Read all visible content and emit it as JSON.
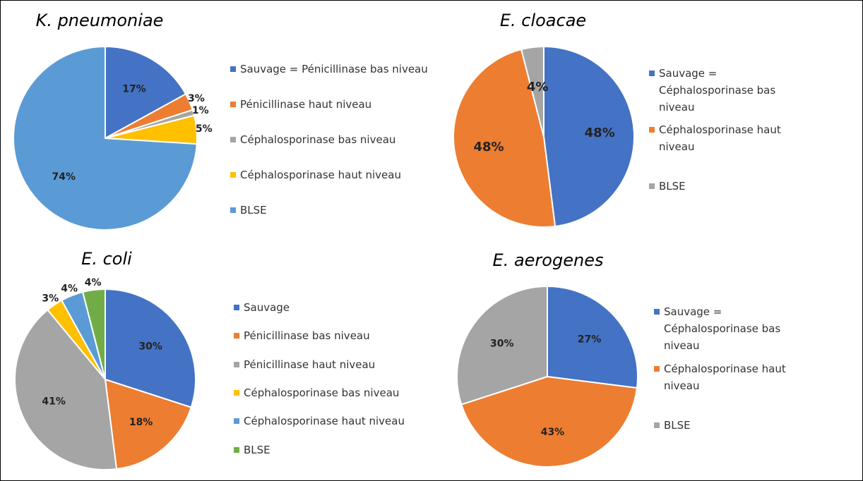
{
  "chart_data": [
    {
      "type": "pie",
      "title": "K. pneumoniae",
      "categories": [
        "Sauvage = Pénicillinase bas niveau",
        "Pénicillinase haut niveau",
        "Céphalosporinase bas niveau",
        "Céphalosporinase haut niveau",
        "BLSE"
      ],
      "values": [
        17,
        3,
        1,
        5,
        74
      ],
      "value_labels": [
        "17%",
        "3%",
        "1%",
        "5%",
        "74%"
      ],
      "colors": [
        "#4472c4",
        "#ed7d31",
        "#a5a5a5",
        "#ffc000",
        "#5b9bd5"
      ]
    },
    {
      "type": "pie",
      "title": "E. cloacae",
      "categories": [
        "Sauvage = Céphalosporinase bas niveau",
        "Céphalosporinase haut niveau",
        "BLSE"
      ],
      "values": [
        48,
        48,
        4
      ],
      "value_labels": [
        "48%",
        "48%",
        "4%"
      ],
      "colors": [
        "#4472c4",
        "#ed7d31",
        "#a5a5a5"
      ]
    },
    {
      "type": "pie",
      "title": "E. coli",
      "categories": [
        "Sauvage",
        "Pénicillinase bas niveau",
        "Pénicillinase haut niveau",
        "Céphalosporinase bas niveau",
        "Céphalosporinase haut niveau",
        "BLSE"
      ],
      "values": [
        30,
        18,
        41,
        3,
        4,
        4
      ],
      "value_labels": [
        "30%",
        "18%",
        "41%",
        "3%",
        "4%",
        "4%"
      ],
      "colors": [
        "#4472c4",
        "#ed7d31",
        "#a5a5a5",
        "#ffc000",
        "#5b9bd5",
        "#70ad47"
      ]
    },
    {
      "type": "pie",
      "title": "E. aerogenes",
      "categories": [
        "Sauvage = Céphalosporinase bas niveau",
        "Céphalosporinase haut niveau",
        "BLSE"
      ],
      "values": [
        27,
        43,
        30
      ],
      "value_labels": [
        "27%",
        "43%",
        "30%"
      ],
      "colors": [
        "#4472c4",
        "#ed7d31",
        "#a5a5a5"
      ]
    }
  ]
}
